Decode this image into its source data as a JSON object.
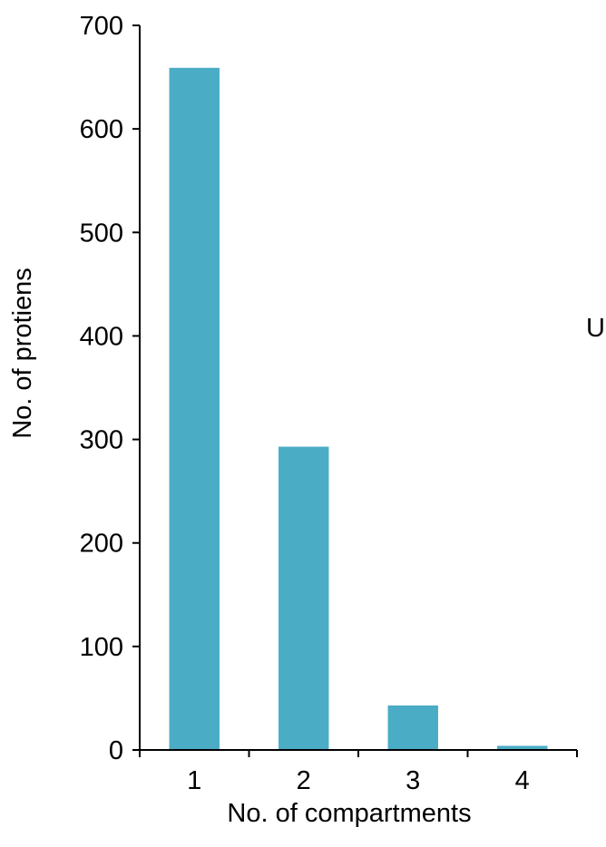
{
  "chart_data": {
    "type": "bar",
    "categories": [
      "1",
      "2",
      "3",
      "4"
    ],
    "values": [
      659,
      293,
      43,
      4
    ],
    "xlabel": "No. of compartments",
    "ylabel": "No. of protiens",
    "ylim": [
      0,
      700
    ],
    "yticks": [
      0,
      100,
      200,
      300,
      400,
      500,
      600,
      700
    ],
    "grid": false,
    "legend": "none",
    "bar_color": "#4bacc6"
  },
  "side_text": "U"
}
